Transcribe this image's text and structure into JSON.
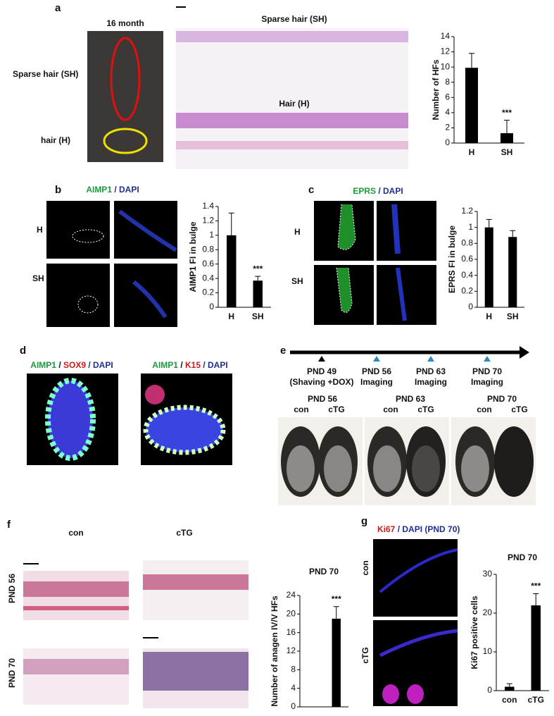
{
  "chart_data": [
    {
      "type": "bar",
      "ylabel": "Number of HFs",
      "categories": [
        "H",
        "SH"
      ],
      "values": [
        9.9,
        1.3
      ],
      "errors": [
        1.9,
        1.7
      ],
      "color": "#000000",
      "ylim": [
        0,
        14
      ],
      "yticks": [
        0,
        2,
        4,
        6,
        8,
        10,
        12,
        14
      ],
      "value_annotations": [
        null,
        "***"
      ]
    },
    {
      "type": "bar",
      "ylabel": "AIMP1 FI in bulge",
      "categories": [
        "H",
        "SH"
      ],
      "values": [
        1,
        0.37
      ],
      "errors": [
        0.31,
        0.06
      ],
      "color": "#000000",
      "ylim": [
        0,
        1.4
      ],
      "yticks": [
        0,
        0.2,
        0.4,
        0.6,
        0.8,
        1,
        1.2,
        1.4
      ],
      "value_annotations": [
        null,
        "***"
      ]
    },
    {
      "type": "bar",
      "ylabel": "EPRS FI in bulge",
      "categories": [
        "H",
        "SH"
      ],
      "values": [
        1,
        0.88
      ],
      "errors": [
        0.1,
        0.08
      ],
      "color": "#000000",
      "ylim": [
        0,
        1.2
      ],
      "yticks": [
        0,
        0.2,
        0.4,
        0.6,
        0.8,
        1,
        1.2
      ]
    },
    {
      "type": "bar",
      "title": "PND 70",
      "ylabel": "Number of anagen IV/V HFs",
      "categories": [
        "con",
        "cTG"
      ],
      "values": [
        0,
        19
      ],
      "errors": [
        0,
        2.6
      ],
      "color": "#000000",
      "ylim": [
        0,
        24
      ],
      "yticks": [
        0,
        4,
        8,
        12,
        16,
        20,
        24
      ],
      "value_annotations": [
        null,
        "***"
      ]
    },
    {
      "type": "bar",
      "title": "PND 70",
      "ylabel": "Ki67 positive cells",
      "categories": [
        "con",
        "cTG"
      ],
      "values": [
        1,
        22
      ],
      "errors": [
        0.8,
        3
      ],
      "color": "#000000",
      "ylim": [
        0,
        30
      ],
      "yticks": [
        0,
        10,
        20,
        30
      ],
      "value_annotations": [
        null,
        "***"
      ]
    }
  ],
  "panels": {
    "a": {
      "label": "a",
      "photo_title": "16 month",
      "sparse_label": "Sparse hair (SH)",
      "hair_label": "hair (H)",
      "top_image_title": "Sparse hair (SH)",
      "bottom_image_title": "Hair (H)"
    },
    "b": {
      "label": "b",
      "title": [
        "AIMP1",
        " / DAPI"
      ],
      "rows": [
        "H",
        "SH"
      ]
    },
    "c": {
      "label": "c",
      "title": [
        "EPRS",
        " / DAPI"
      ],
      "rows": [
        "H",
        "SH"
      ]
    },
    "d": {
      "label": "d",
      "left_title": [
        "AIMP1",
        " / ",
        "SOX9",
        " / DAPI"
      ],
      "right_title": [
        "AIMP1",
        " / ",
        "K15",
        " / DAPI"
      ]
    },
    "e": {
      "label": "e",
      "timeline": [
        [
          "PND 49",
          "(Shaving +DOX)"
        ],
        [
          "PND 56",
          "Imaging"
        ],
        [
          "PND 63",
          "Imaging"
        ],
        [
          "PND 70",
          "Imaging"
        ]
      ],
      "photos": [
        [
          "PND 56",
          "con",
          "cTG"
        ],
        [
          "PND 63",
          "con",
          "cTG"
        ],
        [
          "PND 70",
          "con",
          "cTG"
        ]
      ]
    },
    "f": {
      "label": "f",
      "columns": [
        "con",
        "cTG"
      ],
      "rows": [
        "PND 56",
        "PND 70"
      ]
    },
    "g": {
      "label": "g",
      "title": [
        "Ki67",
        " / DAPI (PND 70)"
      ],
      "rows": [
        "con",
        "cTG"
      ]
    }
  }
}
